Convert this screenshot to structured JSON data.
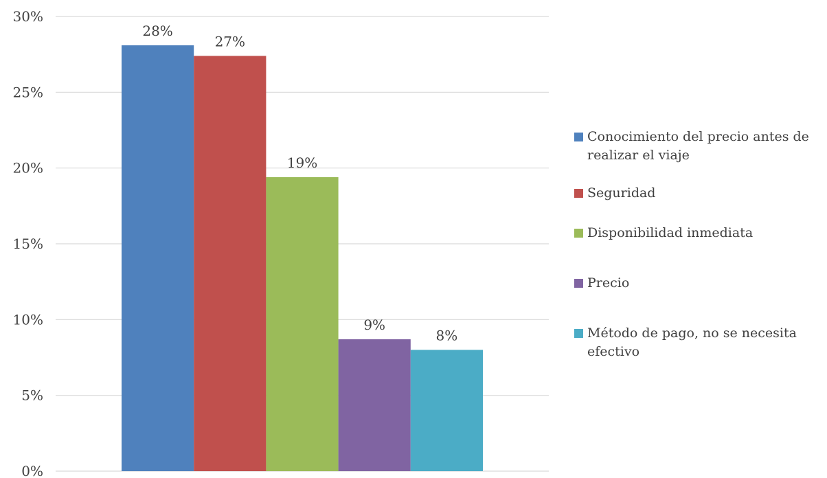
{
  "chart_data": {
    "type": "bar",
    "title": "",
    "xlabel": "",
    "ylabel": "",
    "ylim": [
      0,
      30
    ],
    "y_ticks": [
      "0%",
      "5%",
      "10%",
      "15%",
      "20%",
      "25%",
      "30%"
    ],
    "y_tick_values": [
      0,
      5,
      10,
      15,
      20,
      25,
      30
    ],
    "grid": true,
    "legend_position": "right",
    "series": [
      {
        "name": "Conocimiento del precio antes de realizar el viaje",
        "value": 28.1,
        "label": "28%",
        "color": "#4F81BD"
      },
      {
        "name": "Seguridad",
        "value": 27.4,
        "label": "27%",
        "color": "#C0504D"
      },
      {
        "name": "Disponibilidad inmediata",
        "value": 19.4,
        "label": "19%",
        "color": "#9BBB59"
      },
      {
        "name": "Precio",
        "value": 8.7,
        "label": "9%",
        "color": "#8064A2"
      },
      {
        "name": "Método de pago, no se necesita efectivo",
        "value": 8.0,
        "label": "8%",
        "color": "#4BACC6"
      }
    ]
  }
}
